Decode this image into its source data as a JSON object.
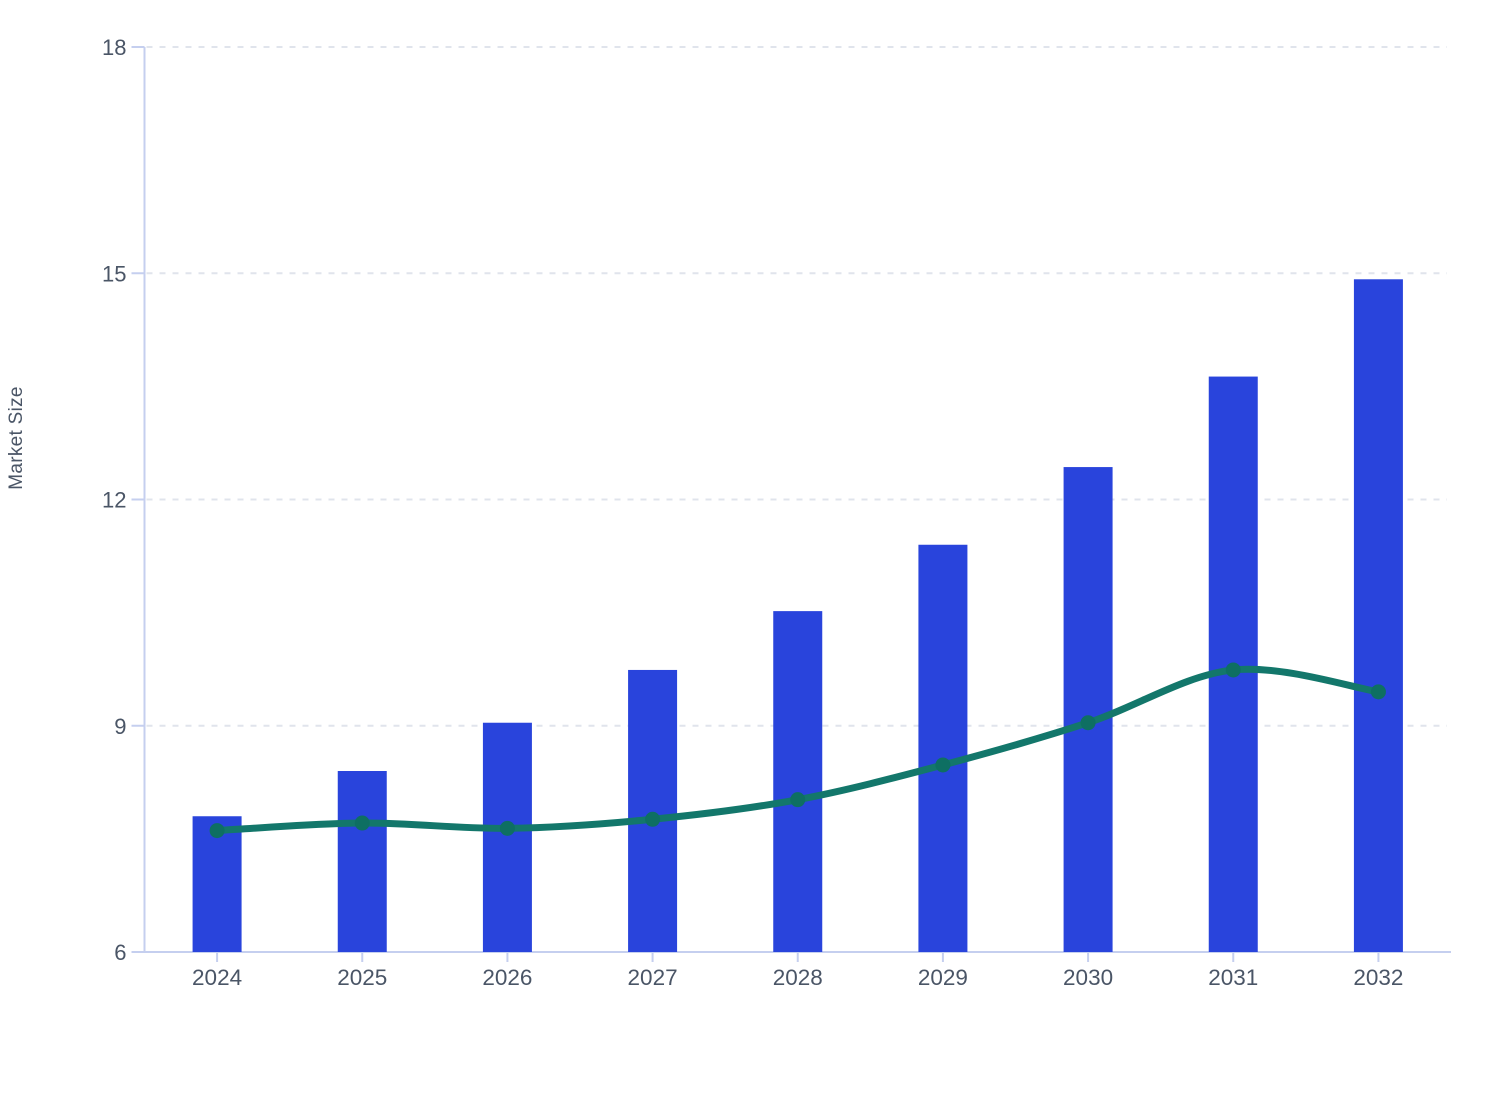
{
  "chart_data": {
    "type": "bar+line",
    "title": "",
    "xlabel": "",
    "ylabel": "Market Size",
    "categories": [
      "2024",
      "2025",
      "2026",
      "2027",
      "2028",
      "2029",
      "2030",
      "2031",
      "2032"
    ],
    "series": [
      {
        "name": "market-size-bars",
        "type": "bar",
        "values": [
          7.8,
          8.4,
          9.04,
          9.74,
          10.52,
          11.4,
          12.43,
          13.63,
          14.92
        ]
      },
      {
        "name": "trend-line",
        "type": "line",
        "values": [
          7.61,
          7.71,
          7.64,
          7.76,
          8.02,
          8.48,
          9.04,
          9.74,
          9.45
        ]
      }
    ],
    "ylim": [
      6,
      18
    ],
    "yticks": [
      6,
      9,
      12,
      15,
      18
    ],
    "grid": "horizontal-dashed",
    "legend": "none"
  },
  "colors": {
    "bar": "#2944dc",
    "line": "#13776b",
    "marker": "#0e6f62",
    "axis": "#c5cfef",
    "gridline": "#e0e4ec",
    "text": "#4a5566"
  }
}
